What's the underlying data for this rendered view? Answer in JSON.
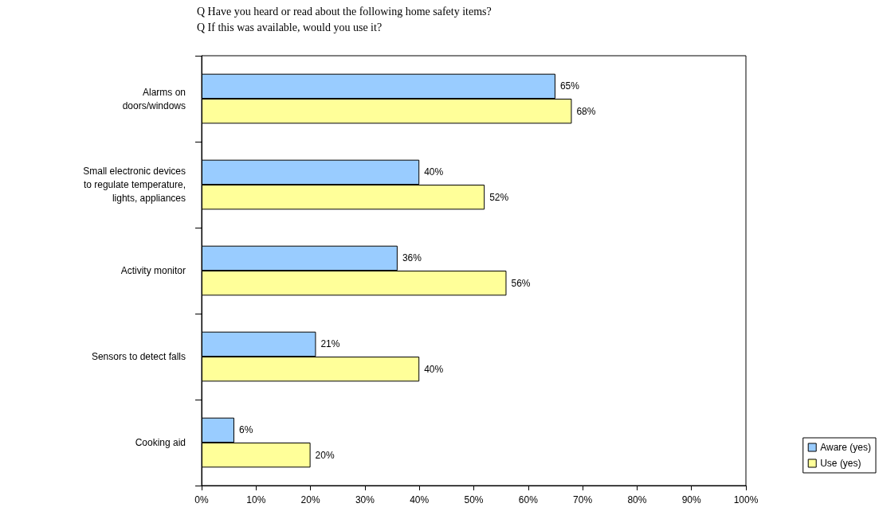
{
  "chart_data": {
    "type": "bar",
    "orientation": "horizontal",
    "title": "Q Have you heard or read about the following home safety items?",
    "subtitle": "Q If this was available, would you use it?",
    "categories": [
      "Alarms on\ndoors/windows",
      "Small electronic devices\nto regulate temperature,\nlights, appliances",
      "Activity monitor",
      "Sensors to detect falls",
      "Cooking aid"
    ],
    "series": [
      {
        "name": "Aware (yes)",
        "color": "#99ccff",
        "values": [
          65,
          40,
          36,
          21,
          6
        ],
        "value_labels": [
          "65%",
          "40%",
          "36%",
          "21%",
          "6%"
        ]
      },
      {
        "name": "Use (yes)",
        "color": "#ffff99",
        "values": [
          68,
          52,
          56,
          40,
          20
        ],
        "value_labels": [
          "68%",
          "52%",
          "56%",
          "40%",
          "20%"
        ]
      }
    ],
    "xlim": [
      0,
      100
    ],
    "xticks": [
      {
        "value": 0,
        "label": "0%"
      },
      {
        "value": 10,
        "label": "10%"
      },
      {
        "value": 20,
        "label": "20%"
      },
      {
        "value": 30,
        "label": "30%"
      },
      {
        "value": 40,
        "label": "40%"
      },
      {
        "value": 50,
        "label": "50%"
      },
      {
        "value": 60,
        "label": "60%"
      },
      {
        "value": 70,
        "label": "70%"
      },
      {
        "value": 80,
        "label": "80%"
      },
      {
        "value": 90,
        "label": "90%"
      },
      {
        "value": 100,
        "label": "100%"
      }
    ],
    "grid": false,
    "legend": "bottom right"
  }
}
